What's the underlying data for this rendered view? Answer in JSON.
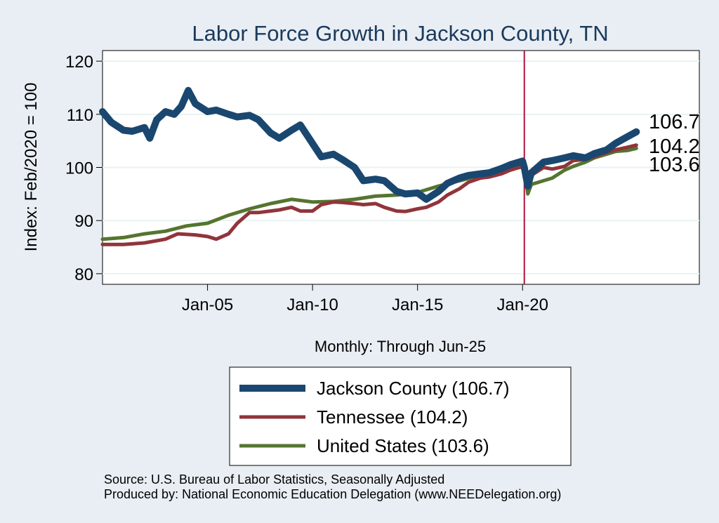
{
  "chart_data": {
    "type": "line",
    "title": "Labor Force Growth in Jackson  County, TN",
    "ylabel": "Index: Feb/2020 = 100",
    "xnote": "Monthly: Through Jun-25",
    "xlim": [
      "2000-01",
      "2028-06"
    ],
    "ylim": [
      78,
      122
    ],
    "yticks": [
      80,
      90,
      100,
      110,
      120
    ],
    "xticks": [
      {
        "date": "2005-01",
        "label": "Jan-05"
      },
      {
        "date": "2010-01",
        "label": "Jan-10"
      },
      {
        "date": "2015-01",
        "label": "Jan-15"
      },
      {
        "date": "2020-01",
        "label": "Jan-20"
      }
    ],
    "reference_line": {
      "date": "2020-02",
      "color": "#b0123f"
    },
    "grid": "horizontal",
    "legend_position": "bottom",
    "series": [
      {
        "name": "Jackson  County (106.7)",
        "color": "#1a476f",
        "width": 10,
        "end_label": "106.7",
        "points": [
          [
            "2000-01",
            110.5
          ],
          [
            "2000-06",
            108.5
          ],
          [
            "2001-01",
            107.0
          ],
          [
            "2001-06",
            106.8
          ],
          [
            "2002-01",
            107.5
          ],
          [
            "2002-04",
            105.5
          ],
          [
            "2002-08",
            109.0
          ],
          [
            "2003-01",
            110.5
          ],
          [
            "2003-06",
            110.0
          ],
          [
            "2003-10",
            111.5
          ],
          [
            "2004-02",
            114.5
          ],
          [
            "2004-06",
            112.0
          ],
          [
            "2005-01",
            110.5
          ],
          [
            "2005-06",
            110.8
          ],
          [
            "2006-01",
            110.0
          ],
          [
            "2006-06",
            109.5
          ],
          [
            "2007-01",
            109.8
          ],
          [
            "2007-06",
            109.0
          ],
          [
            "2008-01",
            106.5
          ],
          [
            "2008-06",
            105.5
          ],
          [
            "2009-01",
            107.0
          ],
          [
            "2009-06",
            108.0
          ],
          [
            "2010-01",
            104.5
          ],
          [
            "2010-06",
            102.0
          ],
          [
            "2011-01",
            102.5
          ],
          [
            "2011-06",
            101.5
          ],
          [
            "2012-01",
            100.0
          ],
          [
            "2012-06",
            97.5
          ],
          [
            "2013-01",
            97.8
          ],
          [
            "2013-06",
            97.5
          ],
          [
            "2014-01",
            95.5
          ],
          [
            "2014-06",
            95.0
          ],
          [
            "2015-01",
            95.2
          ],
          [
            "2015-06",
            94.0
          ],
          [
            "2016-01",
            95.5
          ],
          [
            "2016-06",
            97.0
          ],
          [
            "2017-01",
            98.0
          ],
          [
            "2017-06",
            98.5
          ],
          [
            "2018-01",
            98.8
          ],
          [
            "2018-06",
            99.0
          ],
          [
            "2019-01",
            99.8
          ],
          [
            "2019-06",
            100.5
          ],
          [
            "2020-01",
            101.2
          ],
          [
            "2020-02",
            100.0
          ],
          [
            "2020-04",
            96.5
          ],
          [
            "2020-06",
            99.0
          ],
          [
            "2021-01",
            101.0
          ],
          [
            "2021-06",
            101.3
          ],
          [
            "2022-01",
            101.8
          ],
          [
            "2022-06",
            102.2
          ],
          [
            "2023-01",
            101.8
          ],
          [
            "2023-06",
            102.6
          ],
          [
            "2024-01",
            103.3
          ],
          [
            "2024-06",
            104.5
          ],
          [
            "2025-01",
            105.8
          ],
          [
            "2025-06",
            106.7
          ]
        ]
      },
      {
        "name": "Tennessee (104.2)",
        "color": "#90353b",
        "width": 5,
        "end_label": "104.2",
        "points": [
          [
            "2000-01",
            85.5
          ],
          [
            "2001-01",
            85.5
          ],
          [
            "2002-01",
            85.8
          ],
          [
            "2003-01",
            86.5
          ],
          [
            "2003-08",
            87.5
          ],
          [
            "2004-06",
            87.3
          ],
          [
            "2005-01",
            87.0
          ],
          [
            "2005-06",
            86.5
          ],
          [
            "2006-01",
            87.5
          ],
          [
            "2006-06",
            89.5
          ],
          [
            "2007-01",
            91.5
          ],
          [
            "2007-06",
            91.5
          ],
          [
            "2008-01",
            91.8
          ],
          [
            "2008-06",
            92.0
          ],
          [
            "2009-01",
            92.5
          ],
          [
            "2009-06",
            91.8
          ],
          [
            "2010-01",
            91.8
          ],
          [
            "2010-06",
            93.0
          ],
          [
            "2011-01",
            93.5
          ],
          [
            "2011-06",
            93.4
          ],
          [
            "2012-01",
            93.2
          ],
          [
            "2012-06",
            93.0
          ],
          [
            "2013-01",
            93.2
          ],
          [
            "2013-06",
            92.5
          ],
          [
            "2014-01",
            91.8
          ],
          [
            "2014-06",
            91.7
          ],
          [
            "2015-01",
            92.2
          ],
          [
            "2015-06",
            92.5
          ],
          [
            "2016-01",
            93.5
          ],
          [
            "2016-06",
            94.8
          ],
          [
            "2017-01",
            96.0
          ],
          [
            "2017-06",
            97.2
          ],
          [
            "2018-01",
            98.0
          ],
          [
            "2018-06",
            98.2
          ],
          [
            "2019-01",
            98.8
          ],
          [
            "2019-06",
            99.5
          ],
          [
            "2020-01",
            100.2
          ],
          [
            "2020-02",
            100.0
          ],
          [
            "2020-04",
            96.5
          ],
          [
            "2020-06",
            98.5
          ],
          [
            "2021-01",
            100.0
          ],
          [
            "2021-06",
            99.7
          ],
          [
            "2022-01",
            100.2
          ],
          [
            "2022-06",
            101.3
          ],
          [
            "2023-01",
            101.5
          ],
          [
            "2023-06",
            102.0
          ],
          [
            "2024-01",
            102.8
          ],
          [
            "2024-06",
            103.3
          ],
          [
            "2025-01",
            103.8
          ],
          [
            "2025-06",
            104.2
          ]
        ]
      },
      {
        "name": "United States (103.6)",
        "color": "#55752f",
        "width": 5,
        "end_label": "103.6",
        "points": [
          [
            "2000-01",
            86.5
          ],
          [
            "2001-01",
            86.8
          ],
          [
            "2002-01",
            87.5
          ],
          [
            "2003-01",
            88.0
          ],
          [
            "2004-01",
            89.0
          ],
          [
            "2005-01",
            89.5
          ],
          [
            "2006-01",
            91.0
          ],
          [
            "2007-01",
            92.2
          ],
          [
            "2008-01",
            93.2
          ],
          [
            "2009-01",
            94.0
          ],
          [
            "2010-01",
            93.5
          ],
          [
            "2011-01",
            93.6
          ],
          [
            "2012-01",
            94.0
          ],
          [
            "2013-01",
            94.6
          ],
          [
            "2014-01",
            94.8
          ],
          [
            "2015-01",
            95.3
          ],
          [
            "2016-01",
            96.5
          ],
          [
            "2017-01",
            97.5
          ],
          [
            "2018-01",
            98.5
          ],
          [
            "2019-01",
            99.3
          ],
          [
            "2020-01",
            100.1
          ],
          [
            "2020-02",
            100.0
          ],
          [
            "2020-04",
            95.0
          ],
          [
            "2020-06",
            96.8
          ],
          [
            "2021-01",
            97.5
          ],
          [
            "2021-06",
            98.0
          ],
          [
            "2022-01",
            99.5
          ],
          [
            "2022-06",
            100.2
          ],
          [
            "2023-01",
            101.0
          ],
          [
            "2023-06",
            101.8
          ],
          [
            "2024-01",
            102.5
          ],
          [
            "2024-06",
            103.0
          ],
          [
            "2025-01",
            103.2
          ],
          [
            "2025-06",
            103.6
          ]
        ]
      }
    ]
  },
  "source": {
    "line1": "Source: U.S. Bureau of Labor Statistics, Seasonally Adjusted",
    "line2": "Produced by: National Economic Education Delegation (www.NEEDelegation.org)"
  }
}
